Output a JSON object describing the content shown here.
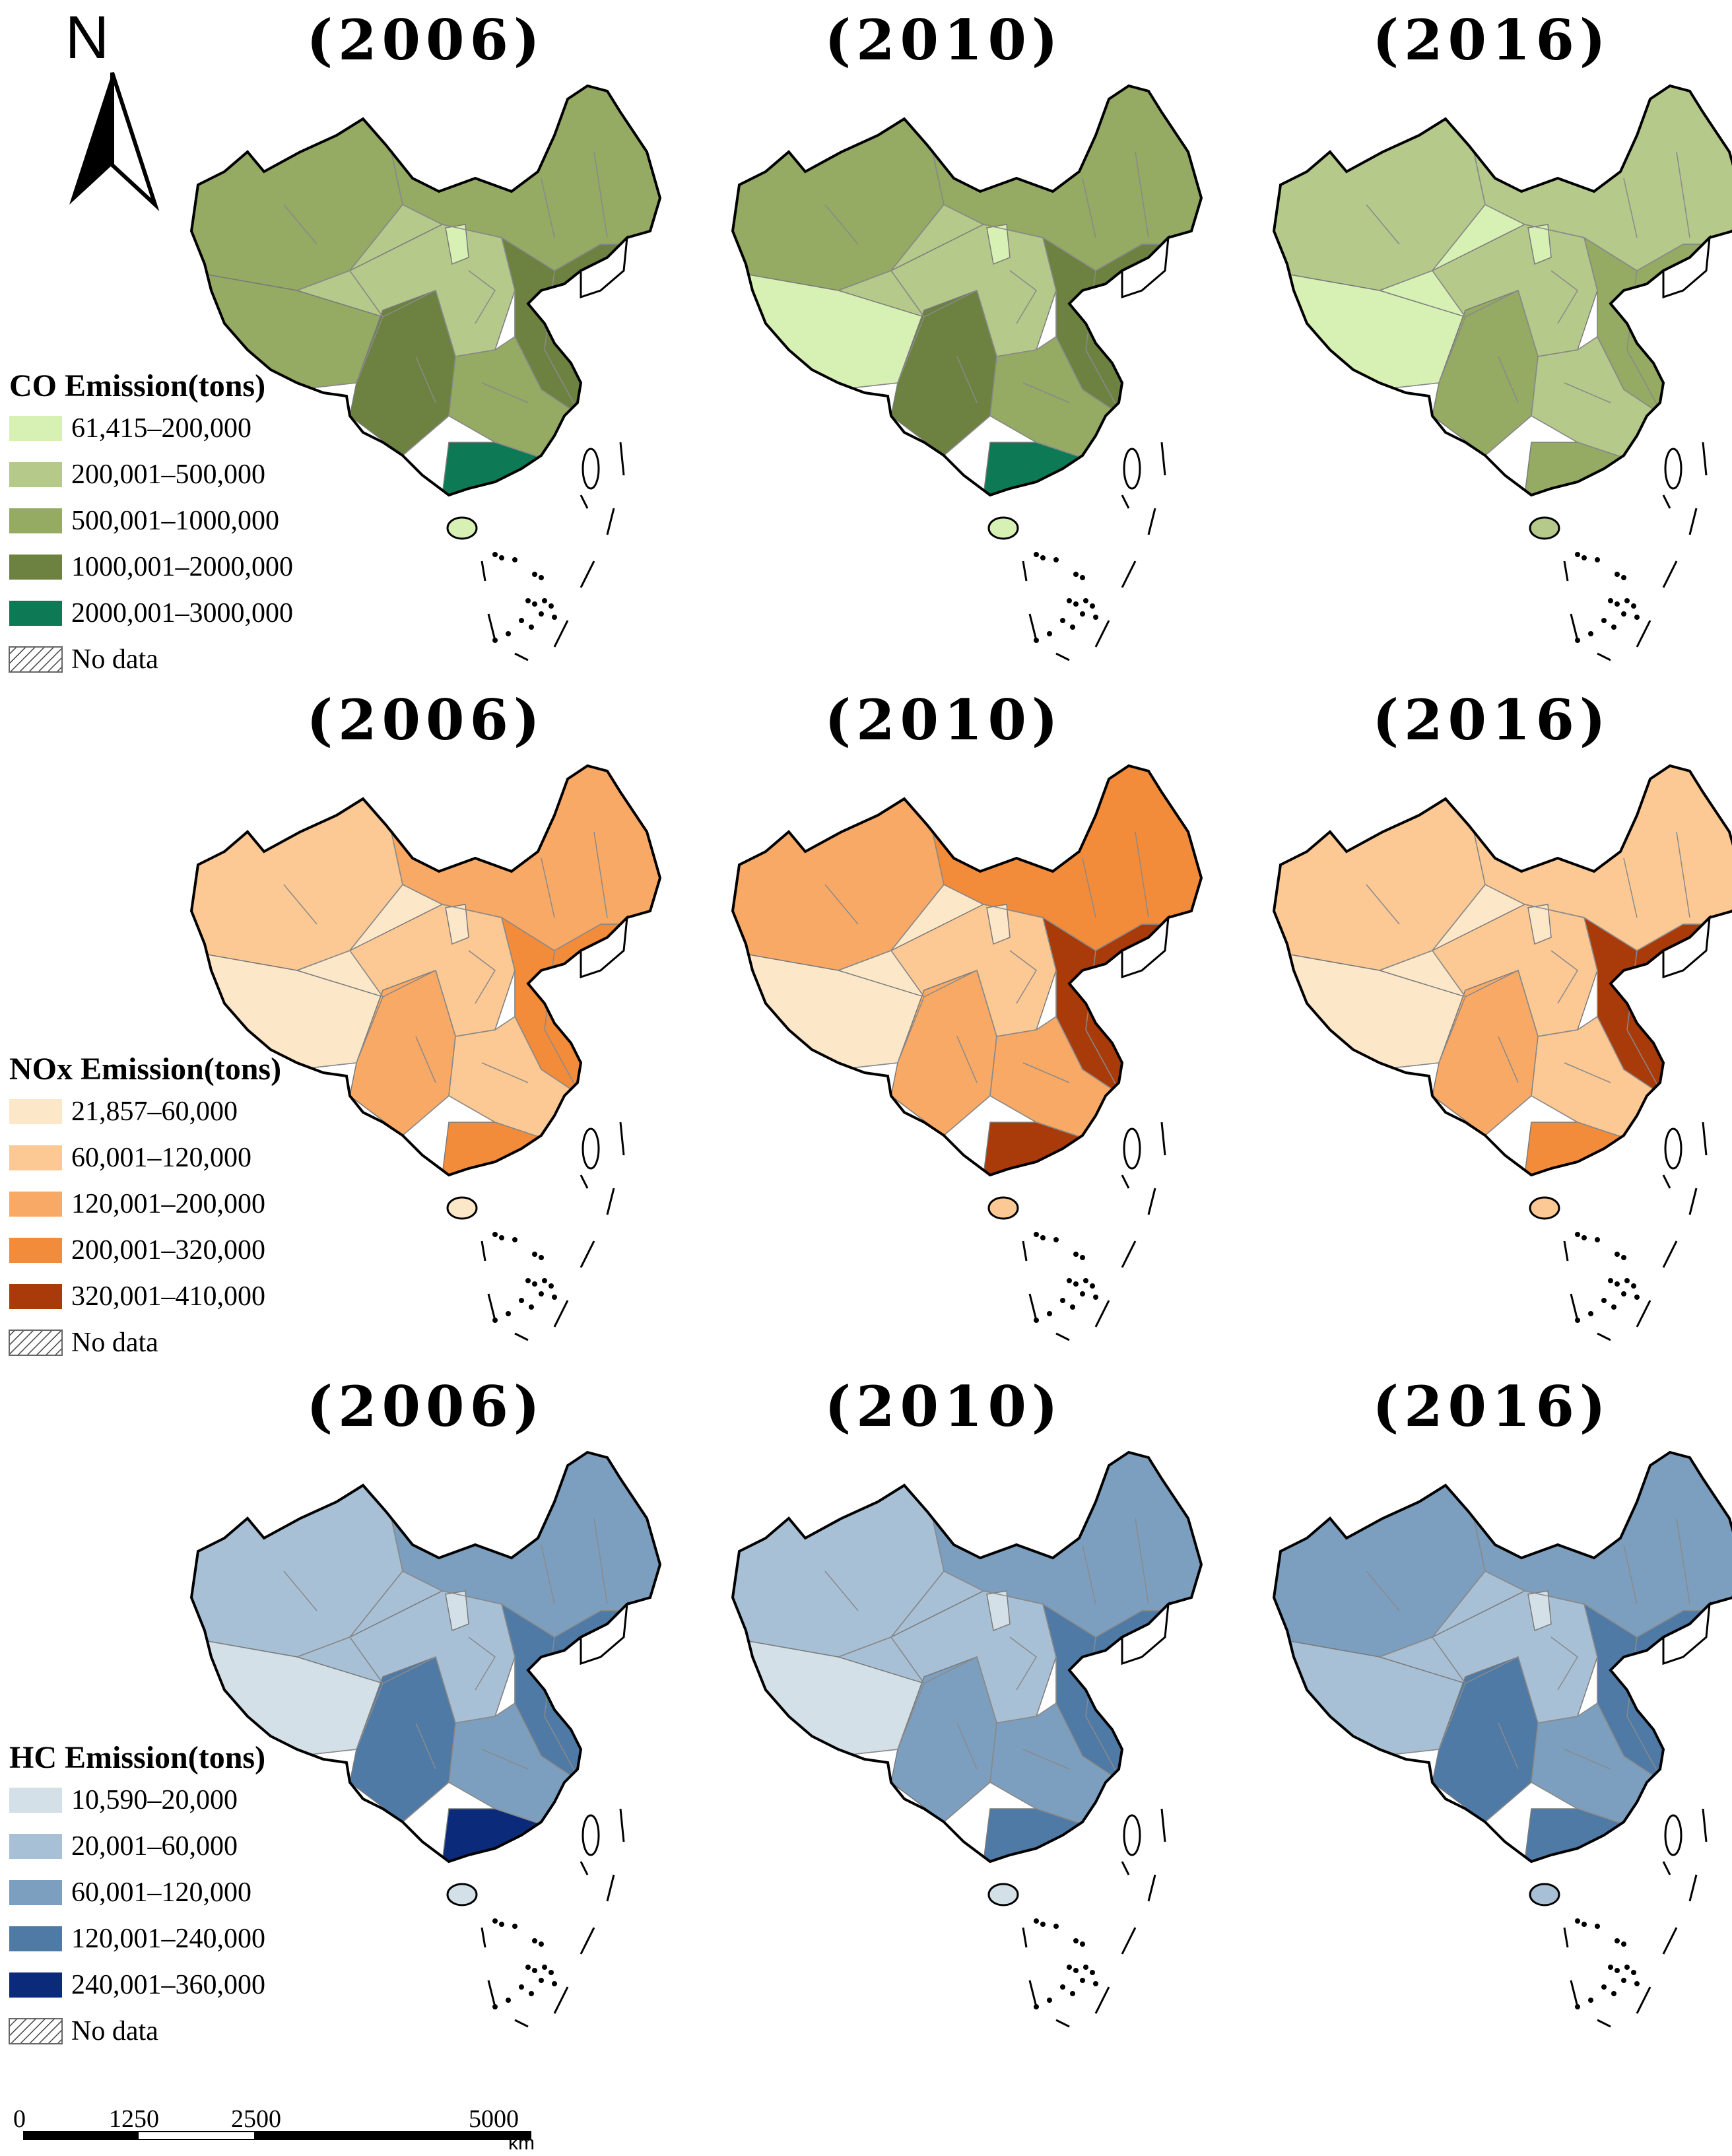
{
  "north_arrow": {
    "label": "N"
  },
  "panels": [
    {
      "id": "co",
      "years": [
        "(2006)",
        "(2010)",
        "(2016)"
      ],
      "legend": {
        "title": "CO Emission(tons)",
        "classes": [
          {
            "label": "61,415–200,000",
            "color": "#d7f0b4"
          },
          {
            "label": "200,001–500,000",
            "color": "#b5c98a"
          },
          {
            "label": "500,001–1000,000",
            "color": "#95aa63"
          },
          {
            "label": "1000,001–2000,000",
            "color": "#6d8240"
          },
          {
            "label": "2000,001–3000,000",
            "color": "#0d7a55"
          }
        ],
        "nodata": "No data"
      },
      "maps": [
        {
          "year": "2006",
          "west": "#95aa63",
          "tibet": "#95aa63",
          "qinghai": "#b5c98a",
          "center": "#b5c98a",
          "north": "#95aa63",
          "east": "#6d8240",
          "south": "#95aa63",
          "sichuan": "#6d8240",
          "ningxia": "#d7f0b4",
          "guangdong": "#0d7a55",
          "hainan": "#d7f0b4"
        },
        {
          "year": "2010",
          "west": "#95aa63",
          "tibet": "#d7f0b4",
          "qinghai": "#b5c98a",
          "center": "#b5c98a",
          "north": "#95aa63",
          "east": "#6d8240",
          "south": "#95aa63",
          "sichuan": "#6d8240",
          "ningxia": "#d7f0b4",
          "guangdong": "#0d7a55",
          "hainan": "#d7f0b4"
        },
        {
          "year": "2016",
          "west": "#b5c98a",
          "tibet": "#d7f0b4",
          "qinghai": "#d7f0b4",
          "center": "#b5c98a",
          "north": "#b5c98a",
          "east": "#95aa63",
          "south": "#b5c98a",
          "sichuan": "#95aa63",
          "ningxia": "#d7f0b4",
          "guangdong": "#95aa63",
          "hainan": "#b5c98a"
        }
      ]
    },
    {
      "id": "nox",
      "years": [
        "(2006)",
        "(2010)",
        "(2016)"
      ],
      "legend": {
        "title": "NOx Emission(tons)",
        "classes": [
          {
            "label": "21,857–60,000",
            "color": "#fde7c9"
          },
          {
            "label": "60,001–120,000",
            "color": "#fcc894"
          },
          {
            "label": "120,001–200,000",
            "color": "#f9a966"
          },
          {
            "label": "200,001–320,000",
            "color": "#f28c3b"
          },
          {
            "label": "320,001–410,000",
            "color": "#a93a0a"
          }
        ],
        "nodata": "No data"
      },
      "maps": [
        {
          "year": "2006",
          "west": "#fcc894",
          "tibet": "#fde7c9",
          "qinghai": "#fde7c9",
          "center": "#fcc894",
          "north": "#f9a966",
          "east": "#f28c3b",
          "south": "#fcc894",
          "sichuan": "#f9a966",
          "ningxia": "#fde7c9",
          "guangdong": "#f28c3b",
          "hainan": "#fde7c9"
        },
        {
          "year": "2010",
          "west": "#f9a966",
          "tibet": "#fde7c9",
          "qinghai": "#fde7c9",
          "center": "#fcc894",
          "north": "#f28c3b",
          "east": "#a93a0a",
          "south": "#f9a966",
          "sichuan": "#f9a966",
          "ningxia": "#fde7c9",
          "guangdong": "#a93a0a",
          "hainan": "#fcc894"
        },
        {
          "year": "2016",
          "west": "#fcc894",
          "tibet": "#fde7c9",
          "qinghai": "#fde7c9",
          "center": "#fcc894",
          "north": "#fcc894",
          "east": "#a93a0a",
          "south": "#fcc894",
          "sichuan": "#f9a966",
          "ningxia": "#fde7c9",
          "guangdong": "#f28c3b",
          "hainan": "#fcc894"
        }
      ]
    },
    {
      "id": "hc",
      "years": [
        "(2006)",
        "(2010)",
        "(2016)"
      ],
      "legend": {
        "title": "HC Emission(tons)",
        "classes": [
          {
            "label": "10,590–20,000",
            "color": "#d3e0e8"
          },
          {
            "label": "20,001–60,000",
            "color": "#a8c0d6"
          },
          {
            "label": "60,001–120,000",
            "color": "#7c9fc0"
          },
          {
            "label": "120,001–240,000",
            "color": "#4f7aa6"
          },
          {
            "label": "240,001–360,000",
            "color": "#0b2a7a"
          }
        ],
        "nodata": "No data"
      },
      "maps": [
        {
          "year": "2006",
          "west": "#a8c0d6",
          "tibet": "#d3e0e8",
          "qinghai": "#a8c0d6",
          "center": "#a8c0d6",
          "north": "#7c9fc0",
          "east": "#4f7aa6",
          "south": "#7c9fc0",
          "sichuan": "#4f7aa6",
          "ningxia": "#d3e0e8",
          "guangdong": "#0b2a7a",
          "hainan": "#d3e0e8"
        },
        {
          "year": "2010",
          "west": "#a8c0d6",
          "tibet": "#d3e0e8",
          "qinghai": "#a8c0d6",
          "center": "#a8c0d6",
          "north": "#7c9fc0",
          "east": "#4f7aa6",
          "south": "#7c9fc0",
          "sichuan": "#7c9fc0",
          "ningxia": "#d3e0e8",
          "guangdong": "#4f7aa6",
          "hainan": "#d3e0e8"
        },
        {
          "year": "2016",
          "west": "#7c9fc0",
          "tibet": "#a8c0d6",
          "qinghai": "#a8c0d6",
          "center": "#a8c0d6",
          "north": "#7c9fc0",
          "east": "#4f7aa6",
          "south": "#7c9fc0",
          "sichuan": "#4f7aa6",
          "ningxia": "#d3e0e8",
          "guangdong": "#4f7aa6",
          "hainan": "#a8c0d6"
        }
      ]
    }
  ],
  "scale_bar": {
    "labels": [
      "0",
      "1250",
      "2500",
      "5000"
    ],
    "unit": "km"
  }
}
